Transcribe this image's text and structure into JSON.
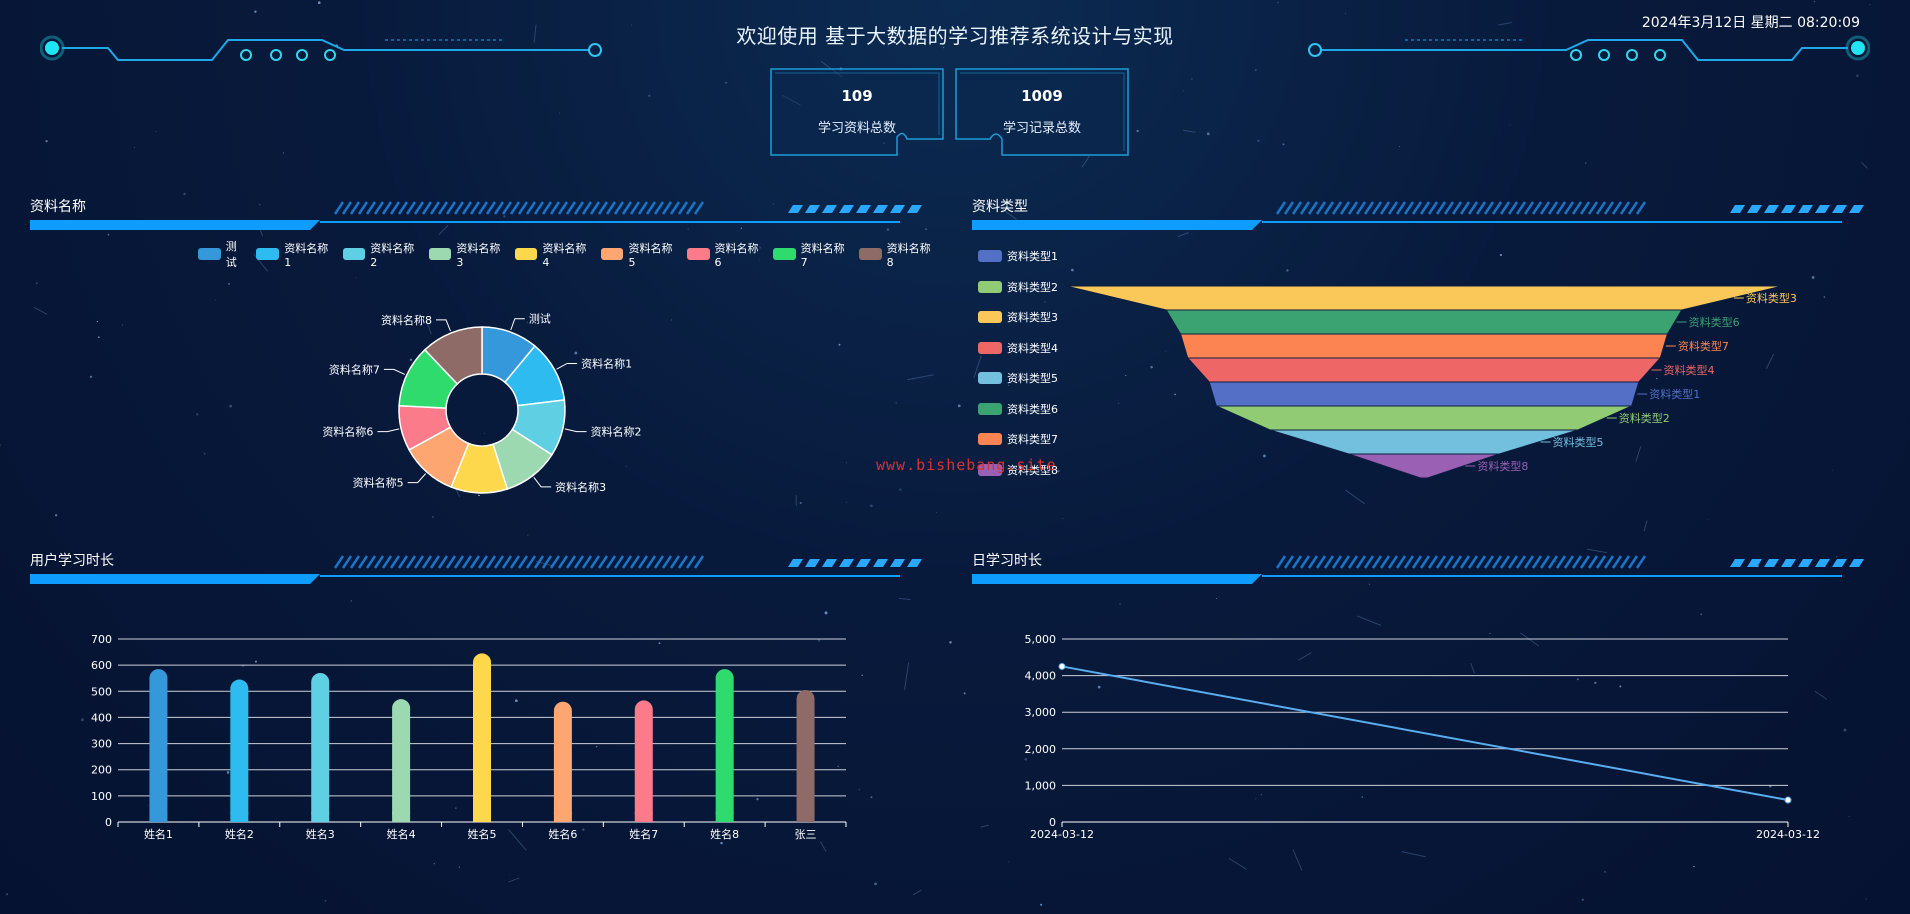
{
  "header": {
    "title": "欢迎使用 基于大数据的学习推荐系统设计与实现",
    "datetime": "2024年3月12日 星期二 08:20:09"
  },
  "stats": [
    {
      "value": "109",
      "label": "学习资料总数"
    },
    {
      "value": "1009",
      "label": "学习记录总数"
    }
  ],
  "watermark": "www.bishebang.site",
  "colors": {
    "accent": "#0e9cff",
    "palette": [
      "#3498db",
      "#2ebbef",
      "#5fcfe3",
      "#9dd9b0",
      "#fed84c",
      "#fda671",
      "#fc7b8b",
      "#2fdb6d",
      "#8e6b66"
    ],
    "funnel_palette": [
      "#5470c6",
      "#91cc75",
      "#fac858",
      "#ee6666",
      "#73c0de",
      "#3ba272",
      "#fc8452",
      "#9a60b4"
    ]
  },
  "chart_data": [
    {
      "type": "pie",
      "title": "资料名称",
      "donut": true,
      "legend_position": "top",
      "labels": [
        "测试",
        "资料名称1",
        "资料名称2",
        "资料名称3",
        "资料名称4",
        "资料名称5",
        "资料名称6",
        "资料名称7",
        "资料名称8"
      ],
      "values": [
        1,
        1.1,
        1,
        1,
        1,
        1,
        0.8,
        1.1,
        1.1
      ]
    },
    {
      "type": "funnel",
      "title": "资料类型",
      "legend_position": "left",
      "legend": [
        "资料类型1",
        "资料类型2",
        "资料类型3",
        "资料类型4",
        "资料类型5",
        "资料类型6",
        "资料类型7",
        "资料类型8"
      ],
      "labels": [
        "资料类型3",
        "资料类型6",
        "资料类型7",
        "资料类型4",
        "资料类型1",
        "资料类型2",
        "资料类型5",
        "资料类型8"
      ],
      "values": [
        100,
        72,
        68,
        66,
        60,
        58,
        43,
        21
      ]
    },
    {
      "type": "bar",
      "title": "用户学习时长",
      "categories": [
        "姓名1",
        "姓名2",
        "姓名3",
        "姓名4",
        "姓名5",
        "姓名6",
        "姓名7",
        "姓名8",
        "张三"
      ],
      "values": [
        585,
        545,
        570,
        470,
        645,
        460,
        465,
        585,
        505
      ],
      "ylim": [
        0,
        700
      ],
      "yticks": [
        "0",
        "100",
        "200",
        "300",
        "400",
        "500",
        "600",
        "700"
      ],
      "grid": true
    },
    {
      "type": "line",
      "title": "日学习时长",
      "x": [
        "2024-03-12",
        "2024-03-12"
      ],
      "values": [
        4250,
        600
      ],
      "ylim": [
        0,
        5000
      ],
      "yticks": [
        "0",
        "1,000",
        "2,000",
        "3,000",
        "4,000",
        "5,000"
      ],
      "grid": true
    }
  ]
}
